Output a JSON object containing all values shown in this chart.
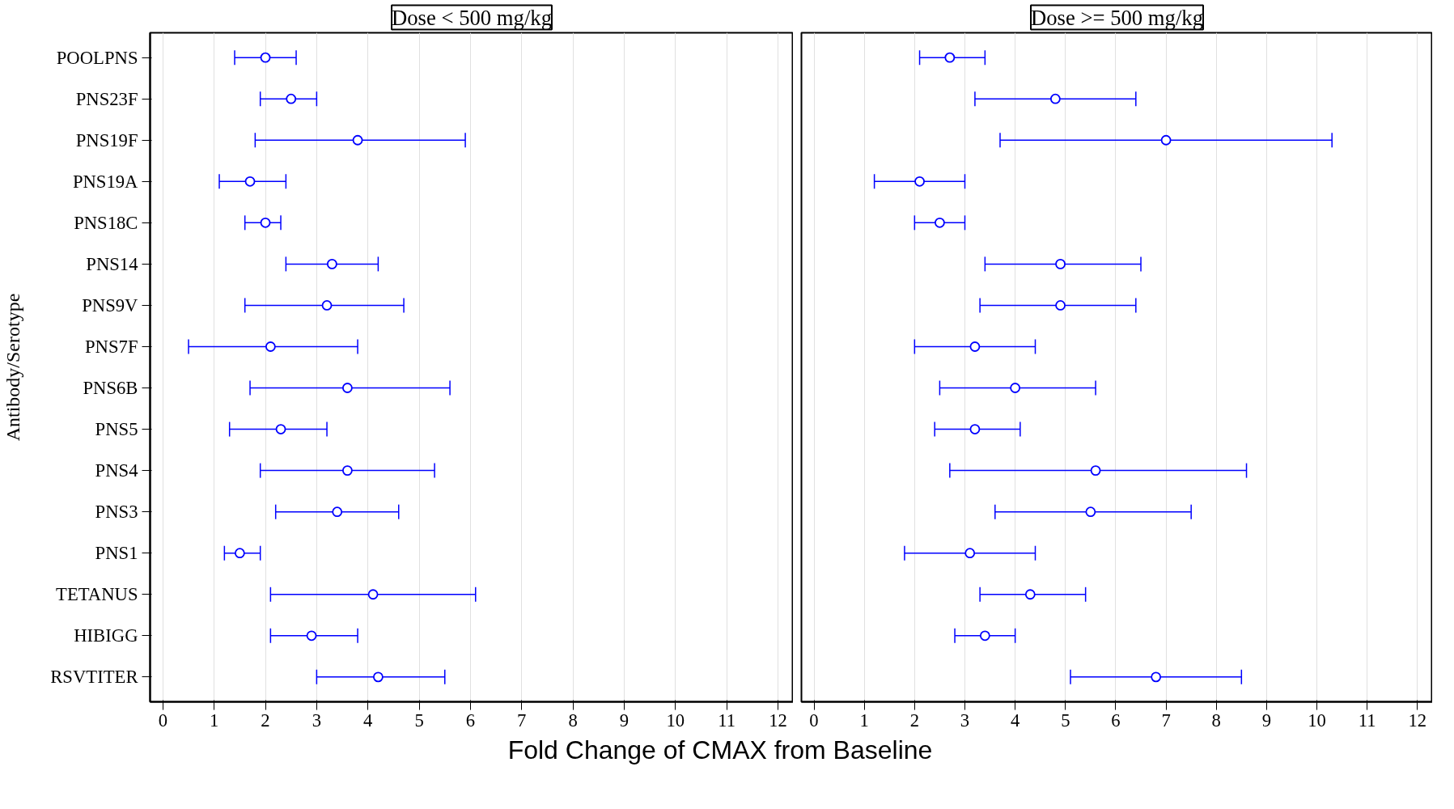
{
  "chart_data": [
    {
      "type": "scatter",
      "orientation": "horizontal",
      "title": "Dose < 500 mg/kg",
      "ylabel": "Antibody/Serotype",
      "xlabel": "Fold Change of CMAX from Baseline",
      "categories": [
        "POOLPNS",
        "PNS23F",
        "PNS19F",
        "PNS19A",
        "PNS18C",
        "PNS14",
        "PNS9V",
        "PNS7F",
        "PNS6B",
        "PNS5",
        "PNS4",
        "PNS3",
        "PNS1",
        "TETANUS",
        "HIBIGG",
        "RSVTITER"
      ],
      "series": [
        {
          "color": "#0000ff",
          "values": [
            2.0,
            2.5,
            3.8,
            1.7,
            2.0,
            3.3,
            3.2,
            2.1,
            3.6,
            2.3,
            3.6,
            3.4,
            1.5,
            4.1,
            2.9,
            4.2
          ],
          "errors": [
            [
              1.4,
              2.6
            ],
            [
              1.9,
              3.0
            ],
            [
              1.8,
              5.9
            ],
            [
              1.1,
              2.4
            ],
            [
              1.6,
              2.3
            ],
            [
              2.4,
              4.2
            ],
            [
              1.6,
              4.7
            ],
            [
              0.5,
              3.8
            ],
            [
              1.7,
              5.6
            ],
            [
              1.3,
              3.2
            ],
            [
              1.9,
              5.3
            ],
            [
              2.2,
              4.6
            ],
            [
              1.2,
              1.9
            ],
            [
              2.1,
              6.1
            ],
            [
              2.1,
              3.8
            ],
            [
              3.0,
              5.5
            ]
          ]
        }
      ],
      "xlim": [
        -0.25,
        12.3
      ],
      "xticks": [
        0,
        1,
        2,
        3,
        4,
        5,
        6,
        7,
        8,
        9,
        10,
        11,
        12
      ],
      "grid": "x",
      "marker": "circle"
    },
    {
      "type": "scatter",
      "orientation": "horizontal",
      "title": "Dose >= 500 mg/kg",
      "categories": [
        null,
        null,
        null,
        null,
        null,
        null,
        null,
        null,
        null,
        null,
        null,
        null,
        null,
        null,
        null,
        null
      ],
      "series": [
        {
          "color": "#0000ff",
          "values": [
            2.7,
            4.8,
            7.0,
            2.1,
            2.5,
            4.9,
            4.9,
            3.2,
            4.0,
            3.2,
            5.6,
            5.5,
            3.1,
            4.3,
            3.4,
            6.8
          ],
          "errors": [
            [
              2.1,
              3.4
            ],
            [
              3.2,
              6.4
            ],
            [
              3.7,
              10.3
            ],
            [
              1.2,
              3.0
            ],
            [
              2.0,
              3.0
            ],
            [
              3.4,
              6.5
            ],
            [
              3.3,
              6.4
            ],
            [
              2.0,
              4.4
            ],
            [
              2.5,
              5.6
            ],
            [
              2.4,
              4.1
            ],
            [
              2.7,
              8.6
            ],
            [
              3.6,
              7.5
            ],
            [
              1.8,
              4.4
            ],
            [
              3.3,
              5.4
            ],
            [
              2.8,
              4.0
            ],
            [
              5.1,
              8.5
            ]
          ]
        }
      ],
      "xlim": [
        -0.25,
        12.3
      ],
      "xticks": [
        0,
        1,
        2,
        3,
        4,
        5,
        6,
        7,
        8,
        9,
        10,
        11,
        12
      ],
      "grid": "x",
      "marker": "circle",
      "tick_labels": "x"
    }
  ]
}
